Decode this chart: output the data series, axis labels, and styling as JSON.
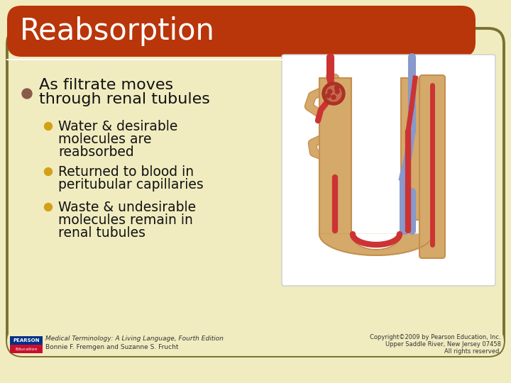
{
  "title": "Reabsorption",
  "title_color": "#FFFFFF",
  "title_bg_color": "#B8360A",
  "background_color": "#F0ECC0",
  "border_color": "#7A7030",
  "bullet1_color": "#8B5A4A",
  "sub_bullet_color": "#D4A017",
  "text_color": "#111111",
  "footer_left1": "Medical Terminology: A Living Language, Fourth Edition",
  "footer_left2": "Bonnie F. Fremgen and Suzanne S. Frucht",
  "footer_right1": "Copyright©2009 by Pearson Education, Inc.",
  "footer_right2": "Upper Saddle River, New Jersey 07458",
  "footer_right3": "All rights reserved.",
  "footer_color": "#333333",
  "pearson_blue": "#003087",
  "pearson_red": "#C8102E",
  "diagram_bg": "#FFFFFF",
  "tube_tan": "#D4A96A",
  "tube_tan_dark": "#C49050",
  "tube_red": "#CC3333",
  "tube_blue": "#8899CC",
  "glom_dark": "#AA3322",
  "glom_light": "#CC6655"
}
